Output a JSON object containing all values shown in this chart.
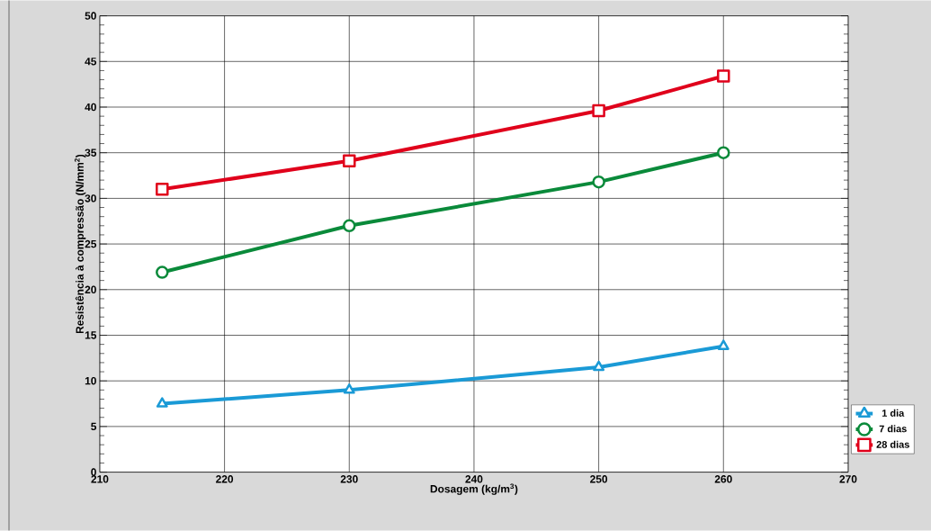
{
  "chart_data": {
    "type": "line",
    "xlabel": "Dosagem (kg/m$^{3}$)",
    "ylabel": "Resistência à compressão  (N/mm$^{2}$)",
    "x": [
      215,
      230,
      250,
      260
    ],
    "series": [
      {
        "name": "1 dia",
        "color": "#1a9ad6",
        "marker": "triangle",
        "values": [
          7.5,
          9.0,
          11.5,
          13.8
        ]
      },
      {
        "name": "7 dias",
        "color": "#0a8a3a",
        "marker": "circle",
        "values": [
          21.9,
          27.0,
          31.8,
          35.0
        ]
      },
      {
        "name": "28 dias",
        "color": "#e0001b",
        "marker": "square",
        "values": [
          31.0,
          34.1,
          39.6,
          43.4
        ]
      }
    ],
    "xlim": [
      210,
      270
    ],
    "ylim": [
      0,
      50
    ],
    "xticks": [
      210,
      220,
      230,
      240,
      250,
      260,
      270
    ],
    "yticks": [
      0,
      5,
      10,
      15,
      20,
      25,
      30,
      35,
      40,
      45,
      50
    ],
    "grid": true,
    "legend": "bottom right",
    "line_style": "solid"
  }
}
